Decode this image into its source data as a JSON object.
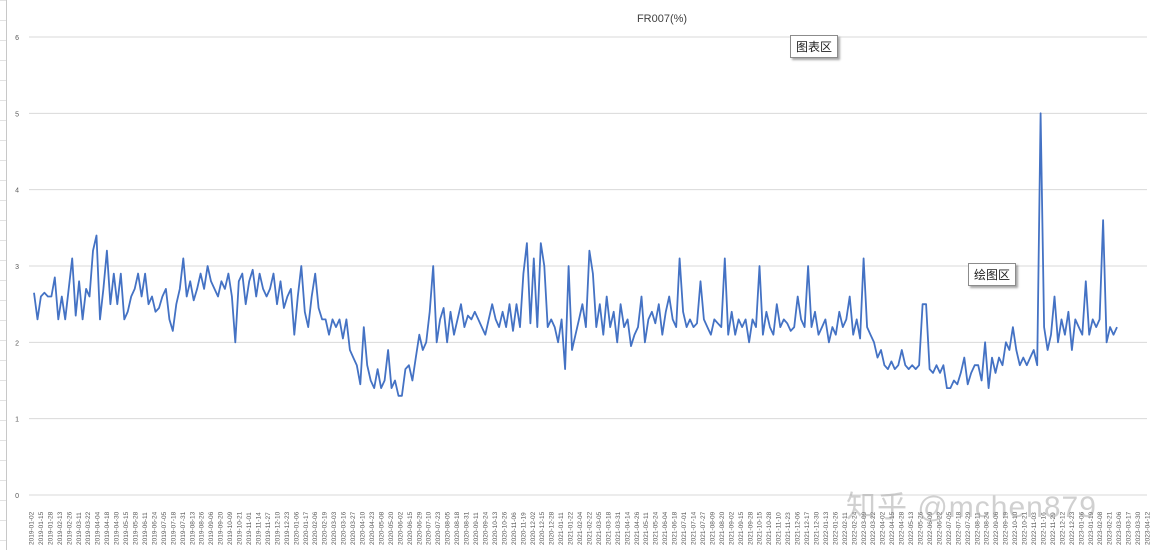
{
  "callouts": {
    "chart_area": "图表区",
    "plot_area": "绘图区"
  },
  "watermark": "知乎 @mchen879",
  "colors": {
    "line": "#4472c4",
    "grid": "#d9d9d9",
    "axis_text": "#595959"
  },
  "chart_data": {
    "type": "line",
    "title": "FR007(%)",
    "xlabel": "",
    "ylabel": "",
    "ylim": [
      0,
      6
    ],
    "yticks": [
      0,
      1,
      2,
      3,
      4,
      5,
      6
    ],
    "grid": true,
    "legend": "none",
    "xticks": [
      "2019-01-02",
      "2019-01-15",
      "2019-01-28",
      "2019-02-13",
      "2019-02-26",
      "2019-03-11",
      "2019-03-22",
      "2019-04-04",
      "2019-04-18",
      "2019-04-30",
      "2019-05-15",
      "2019-05-28",
      "2019-06-11",
      "2019-06-24",
      "2019-07-05",
      "2019-07-18",
      "2019-07-31",
      "2019-08-13",
      "2019-08-26",
      "2019-09-06",
      "2019-09-20",
      "2019-10-09",
      "2019-10-21",
      "2019-11-01",
      "2019-11-14",
      "2019-11-27",
      "2019-12-10",
      "2019-12-23",
      "2020-01-06",
      "2020-01-17",
      "2020-02-06",
      "2020-02-19",
      "2020-03-03",
      "2020-03-16",
      "2020-03-27",
      "2020-04-10",
      "2020-04-23",
      "2020-05-08",
      "2020-05-20",
      "2020-06-02",
      "2020-06-15",
      "2020-06-29",
      "2020-07-10",
      "2020-07-23",
      "2020-08-05",
      "2020-08-18",
      "2020-08-31",
      "2020-09-11",
      "2020-09-24",
      "2020-10-13",
      "2020-10-26",
      "2020-11-06",
      "2020-11-19",
      "2020-12-02",
      "2020-12-15",
      "2020-12-28",
      "2021-01-11",
      "2021-01-22",
      "2021-02-04",
      "2021-02-22",
      "2021-03-05",
      "2021-03-18",
      "2021-03-31",
      "2021-04-14",
      "2021-04-26",
      "2021-05-11",
      "2021-05-24",
      "2021-06-04",
      "2021-06-18",
      "2021-07-01",
      "2021-07-14",
      "2021-07-27",
      "2021-08-09",
      "2021-08-20",
      "2021-09-02",
      "2021-09-15",
      "2021-09-28",
      "2021-10-15",
      "2021-10-28",
      "2021-11-10",
      "2021-11-23",
      "2021-12-06",
      "2021-12-17",
      "2021-12-30",
      "2022-01-13",
      "2022-01-26",
      "2022-02-11",
      "2022-02-24",
      "2022-03-09",
      "2022-03-22",
      "2022-04-02",
      "2022-04-15",
      "2022-04-28",
      "2022-05-13",
      "2022-05-26",
      "2022-06-09",
      "2022-06-22",
      "2022-07-05",
      "2022-07-18",
      "2022-07-29",
      "2022-08-11",
      "2022-08-24",
      "2022-09-06",
      "2022-09-19",
      "2022-10-10",
      "2022-10-21",
      "2022-11-03",
      "2022-11-16",
      "2022-11-29",
      "2022-12-12",
      "2022-12-23",
      "2023-01-06",
      "2023-01-19",
      "2023-02-08",
      "2023-02-21",
      "2023-03-06",
      "2023-03-17",
      "2023-03-30",
      "2023-04-12"
    ],
    "series": [
      {
        "values": [
          2.65,
          2.3,
          2.6,
          2.65,
          2.6,
          2.6,
          2.85,
          2.3,
          2.6,
          2.3,
          2.7,
          3.1,
          2.35,
          2.8,
          2.3,
          2.7,
          2.6,
          3.2,
          3.4,
          2.3,
          2.7,
          3.2,
          2.5,
          2.9,
          2.5,
          2.9,
          2.3,
          2.4,
          2.6,
          2.7,
          2.9,
          2.6,
          2.9,
          2.5,
          2.6,
          2.4,
          2.45,
          2.6,
          2.7,
          2.3,
          2.15,
          2.5,
          2.7,
          3.1,
          2.6,
          2.8,
          2.55,
          2.7,
          2.9,
          2.7,
          3.0,
          2.8,
          2.7,
          2.6,
          2.8,
          2.7,
          2.9,
          2.6,
          2.0,
          2.8,
          2.9,
          2.5,
          2.8,
          2.95,
          2.6,
          2.9,
          2.7,
          2.6,
          2.7,
          2.9,
          2.5,
          2.8,
          2.45,
          2.6,
          2.7,
          2.1,
          2.6,
          3.0,
          2.4,
          2.2,
          2.6,
          2.9,
          2.45,
          2.3,
          2.3,
          2.1,
          2.3,
          2.2,
          2.3,
          2.05,
          2.3,
          1.9,
          1.8,
          1.7,
          1.45,
          2.2,
          1.7,
          1.5,
          1.4,
          1.65,
          1.4,
          1.5,
          1.9,
          1.4,
          1.5,
          1.3,
          1.3,
          1.65,
          1.7,
          1.5,
          1.8,
          2.1,
          1.9,
          2.0,
          2.4,
          3.0,
          2.0,
          2.3,
          2.45,
          2.0,
          2.4,
          2.1,
          2.3,
          2.5,
          2.2,
          2.35,
          2.3,
          2.4,
          2.3,
          2.2,
          2.1,
          2.3,
          2.5,
          2.3,
          2.2,
          2.4,
          2.2,
          2.5,
          2.15,
          2.5,
          2.2,
          2.9,
          3.3,
          2.25,
          3.1,
          2.2,
          3.3,
          3.0,
          2.2,
          2.3,
          2.2,
          2.0,
          2.3,
          1.65,
          3.0,
          1.9,
          2.1,
          2.3,
          2.5,
          2.2,
          3.2,
          2.9,
          2.2,
          2.5,
          2.1,
          2.6,
          2.2,
          2.4,
          2.0,
          2.5,
          2.2,
          2.3,
          1.95,
          2.1,
          2.2,
          2.6,
          2.0,
          2.3,
          2.4,
          2.25,
          2.5,
          2.1,
          2.4,
          2.6,
          2.3,
          2.2,
          3.1,
          2.4,
          2.2,
          2.3,
          2.2,
          2.25,
          2.8,
          2.3,
          2.2,
          2.1,
          2.3,
          2.25,
          2.2,
          3.1,
          2.1,
          2.4,
          2.1,
          2.3,
          2.2,
          2.3,
          2.0,
          2.3,
          2.2,
          3.0,
          2.1,
          2.4,
          2.2,
          2.1,
          2.5,
          2.2,
          2.3,
          2.25,
          2.15,
          2.2,
          2.6,
          2.3,
          2.2,
          3.0,
          2.2,
          2.4,
          2.1,
          2.2,
          2.3,
          2.0,
          2.2,
          2.1,
          2.4,
          2.2,
          2.3,
          2.6,
          2.1,
          2.3,
          2.05,
          3.1,
          2.2,
          2.1,
          2.0,
          1.8,
          1.9,
          1.7,
          1.65,
          1.75,
          1.65,
          1.7,
          1.9,
          1.7,
          1.65,
          1.7,
          1.65,
          1.7,
          2.5,
          2.5,
          1.65,
          1.6,
          1.7,
          1.6,
          1.7,
          1.4,
          1.4,
          1.5,
          1.45,
          1.6,
          1.8,
          1.45,
          1.6,
          1.7,
          1.7,
          1.5,
          2.0,
          1.4,
          1.8,
          1.6,
          1.8,
          1.7,
          2.0,
          1.9,
          2.2,
          1.9,
          1.7,
          1.8,
          1.7,
          1.8,
          1.9,
          1.7,
          5.0,
          2.2,
          1.9,
          2.1,
          2.6,
          2.0,
          2.3,
          2.1,
          2.4,
          1.9,
          2.3,
          2.2,
          2.1,
          2.8,
          2.1,
          2.3,
          2.2,
          2.3,
          3.6,
          2.0,
          2.2,
          2.1,
          2.2
        ]
      }
    ]
  }
}
